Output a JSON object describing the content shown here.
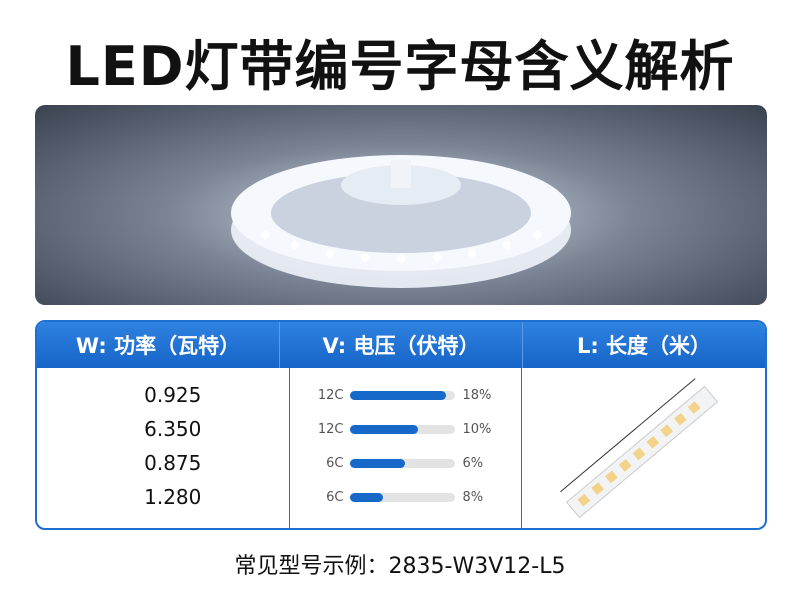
{
  "title": "LED灯带编号字母含义解析",
  "columns": [
    {
      "header": "W: 功率（瓦特）",
      "values": [
        "0.925",
        "6.350",
        "0.875",
        "1.280"
      ]
    },
    {
      "header": "V: 电压（伏特）",
      "rows": [
        {
          "label": "12C",
          "percent": "18%",
          "fill": 0.92
        },
        {
          "label": "12C",
          "percent": "10%",
          "fill": 0.65
        },
        {
          "label": "6C",
          "percent": "6%",
          "fill": 0.53
        },
        {
          "label": "6C",
          "percent": "8%",
          "fill": 0.32
        }
      ]
    },
    {
      "header": "L: 长度（米）"
    }
  ],
  "footer": "常见型号示例：2835-W3V12-L5",
  "colors": {
    "accent": "#1f6fd1",
    "bar": "#1668c9",
    "track": "#e3e3e3"
  }
}
